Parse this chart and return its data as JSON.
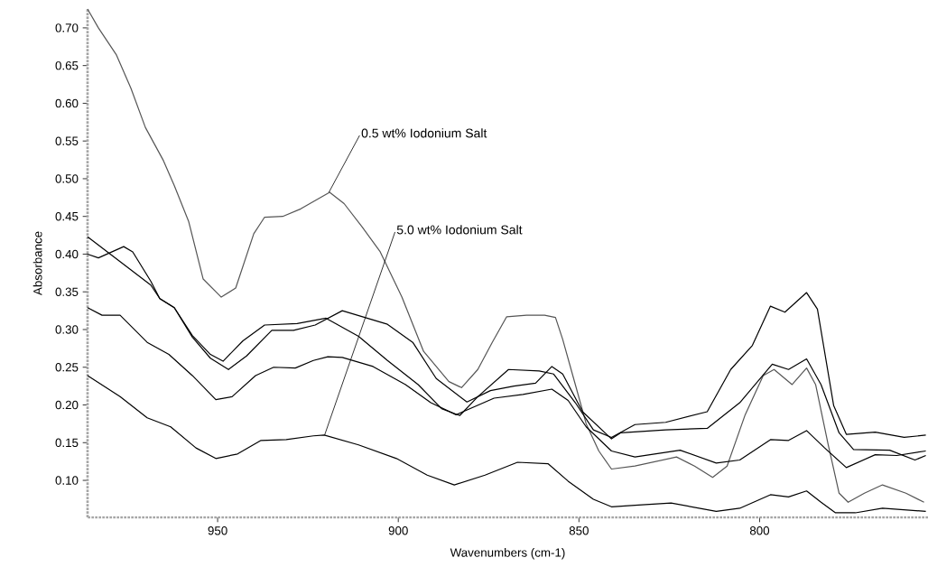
{
  "chart_data": {
    "type": "line",
    "xlabel": "Wavenumbers (cm-1)",
    "ylabel": "Absorbance",
    "xlim": [
      986,
      753.4
    ],
    "ylim": [
      0.051,
      0.725
    ],
    "xticks": [
      950,
      900,
      850,
      800
    ],
    "yticks": [
      {
        "value": 0.1,
        "label": "0.10"
      },
      {
        "value": 0.15,
        "label": "0.15"
      },
      {
        "value": 0.2,
        "label": "0.20"
      },
      {
        "value": 0.25,
        "label": "0.25"
      },
      {
        "value": 0.3,
        "label": "0.30"
      },
      {
        "value": 0.35,
        "label": "0.35"
      },
      {
        "value": 0.4,
        "label": "0.40"
      },
      {
        "value": 0.45,
        "label": "0.45"
      },
      {
        "value": 0.5,
        "label": "0.50"
      },
      {
        "value": 0.55,
        "label": "0.55"
      },
      {
        "value": 0.6,
        "label": "0.60"
      },
      {
        "value": 0.65,
        "label": "0.65"
      },
      {
        "value": 0.7,
        "label": "0.70"
      }
    ],
    "marker": "none",
    "line_style": "solid",
    "annotations": [
      {
        "text": "0.5 wt% Iodonium Salt",
        "x": 919.2,
        "y": 0.482
      },
      {
        "text": "5.0 wt% Iodonium Salt",
        "x": 920.4,
        "y": 0.16
      }
    ],
    "series": [
      {
        "color": "#555555",
        "x": [
          986,
          983,
          978,
          974,
          970,
          965,
          962,
          958,
          954,
          949,
          945,
          940,
          937,
          932,
          927,
          919,
          915,
          910,
          905,
          899,
          893,
          886,
          882.5,
          878,
          874,
          870,
          864.5,
          859.5,
          856.5,
          854.5,
          851,
          848,
          844.5,
          841,
          834.5,
          823,
          818,
          813,
          809,
          804,
          799,
          796,
          791,
          787,
          784.5,
          781,
          778,
          775.5,
          771,
          766,
          759.5,
          754.5
        ],
        "values": [
          0.725,
          0.7,
          0.664,
          0.62,
          0.568,
          0.524,
          0.491,
          0.443,
          0.367,
          0.343,
          0.355,
          0.427,
          0.449,
          0.45,
          0.46,
          0.482,
          0.467,
          0.436,
          0.403,
          0.343,
          0.271,
          0.231,
          0.223,
          0.247,
          0.283,
          0.317,
          0.319,
          0.319,
          0.316,
          0.287,
          0.227,
          0.175,
          0.139,
          0.115,
          0.119,
          0.131,
          0.119,
          0.104,
          0.119,
          0.187,
          0.239,
          0.247,
          0.227,
          0.249,
          0.227,
          0.147,
          0.083,
          0.071,
          0.083,
          0.094,
          0.083,
          0.071
        ]
      },
      {
        "color": "#000000",
        "x": [
          986,
          977,
          969.5,
          963,
          956,
          950.5,
          944.5,
          938,
          931,
          923.5,
          920.5,
          911,
          900.5,
          892,
          884.5,
          876,
          867,
          858.5,
          853,
          846,
          841,
          834.5,
          824.5,
          812,
          805.5,
          797,
          792,
          787,
          783,
          779,
          773.5,
          766,
          754
        ],
        "values": [
          0.239,
          0.211,
          0.183,
          0.171,
          0.143,
          0.129,
          0.135,
          0.153,
          0.154,
          0.159,
          0.16,
          0.147,
          0.129,
          0.107,
          0.094,
          0.107,
          0.124,
          0.122,
          0.099,
          0.075,
          0.065,
          0.067,
          0.07,
          0.059,
          0.063,
          0.081,
          0.078,
          0.086,
          0.071,
          0.057,
          0.057,
          0.063,
          0.059
        ]
      },
      {
        "color": "#000000",
        "x": [
          986,
          982,
          977,
          969.5,
          963.5,
          957,
          950.5,
          946,
          939.5,
          934.5,
          928.5,
          923.5,
          919.5,
          915.5,
          907,
          898,
          891,
          884,
          873.5,
          865.5,
          857.5,
          853,
          848,
          841,
          834.5,
          822,
          812,
          805.5,
          797,
          792,
          787,
          782,
          776,
          768,
          762,
          754
        ],
        "values": [
          0.329,
          0.319,
          0.319,
          0.283,
          0.267,
          0.239,
          0.207,
          0.211,
          0.239,
          0.25,
          0.249,
          0.259,
          0.264,
          0.263,
          0.251,
          0.227,
          0.203,
          0.187,
          0.209,
          0.214,
          0.221,
          0.206,
          0.171,
          0.139,
          0.131,
          0.14,
          0.123,
          0.127,
          0.154,
          0.153,
          0.166,
          0.143,
          0.117,
          0.134,
          0.133,
          0.139
        ]
      },
      {
        "color": "#000000",
        "x": [
          986,
          977,
          968.5,
          966,
          962,
          957,
          952,
          948.5,
          943,
          937,
          928,
          920,
          911,
          903,
          894.5,
          888,
          883,
          878,
          869.5,
          861,
          857,
          851,
          846,
          841,
          834.5,
          826,
          814.5,
          808,
          802,
          797,
          793,
          787,
          784,
          779.5,
          776,
          768,
          760,
          754
        ],
        "values": [
          0.423,
          0.39,
          0.359,
          0.341,
          0.329,
          0.292,
          0.267,
          0.258,
          0.285,
          0.306,
          0.308,
          0.315,
          0.291,
          0.259,
          0.227,
          0.195,
          0.186,
          0.211,
          0.247,
          0.245,
          0.241,
          0.203,
          0.167,
          0.157,
          0.174,
          0.177,
          0.191,
          0.247,
          0.279,
          0.331,
          0.323,
          0.349,
          0.327,
          0.199,
          0.161,
          0.164,
          0.157,
          0.16
        ]
      },
      {
        "color": "#000000",
        "x": [
          986,
          983,
          976,
          973.5,
          968.5,
          966,
          962,
          957,
          952,
          947,
          942,
          935,
          929,
          923,
          915.5,
          903,
          896,
          889.5,
          881,
          874.5,
          868,
          862,
          857.5,
          854.5,
          849,
          841,
          838.5,
          826,
          814.5,
          805.5,
          796.5,
          792,
          787,
          783,
          778,
          774,
          764,
          757,
          754
        ],
        "values": [
          0.4,
          0.395,
          0.41,
          0.403,
          0.364,
          0.341,
          0.329,
          0.29,
          0.262,
          0.247,
          0.265,
          0.299,
          0.299,
          0.306,
          0.325,
          0.307,
          0.283,
          0.235,
          0.204,
          0.219,
          0.225,
          0.229,
          0.251,
          0.241,
          0.191,
          0.155,
          0.163,
          0.167,
          0.169,
          0.203,
          0.254,
          0.247,
          0.261,
          0.227,
          0.163,
          0.141,
          0.14,
          0.127,
          0.133
        ]
      }
    ]
  }
}
